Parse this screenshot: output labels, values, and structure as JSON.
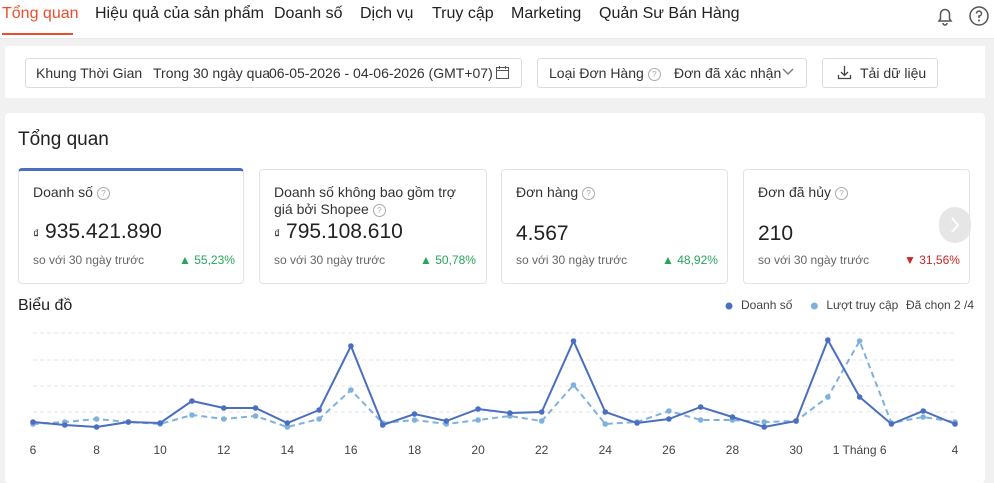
{
  "nav": {
    "tabs": [
      "Tổng quan",
      "Hiệu quả của sản phẩm",
      "Doanh số",
      "Dịch vụ",
      "Truy cập",
      "Marketing",
      "Quản Sư Bán Hàng"
    ]
  },
  "filters": {
    "time_label": "Khung Thời Gian",
    "time_value": "Trong 30 ngày qua",
    "date_range": "06-05-2026 - 04-06-2026 (GMT+07)",
    "order_type_label": "Loại Đơn Hàng",
    "order_type_value": "Đơn đã xác nhận",
    "download": "Tải dữ liệu"
  },
  "overview": {
    "title": "Tổng quan",
    "cards": [
      {
        "label": "Doanh số",
        "currency": "₫",
        "value": "935.421.890",
        "compare": "so với 30 ngày trước",
        "change": "55,23%"
      },
      {
        "label": "Doanh số không bao gồm trợ giá bởi Shopee",
        "currency": "₫",
        "value": "795.108.610",
        "compare": "so với 30 ngày trước",
        "change": "50,78%"
      },
      {
        "label": "Đơn hàng",
        "value": "4.567",
        "compare": "so với 30 ngày trước",
        "change": "48,92%"
      },
      {
        "label": "Đơn đã hủy",
        "value": "210",
        "compare": "so với 30 ngày trước",
        "change": "31,56%"
      }
    ]
  },
  "chart_data": {
    "type": "line",
    "title": "Biểu đồ",
    "selected": "Đã chọn 2 /4",
    "categories": [
      "6",
      null,
      "8",
      null,
      "10",
      null,
      "12",
      null,
      "14",
      null,
      "16",
      null,
      "18",
      null,
      "20",
      null,
      "22",
      null,
      "24",
      null,
      "26",
      null,
      "28",
      null,
      "30",
      null,
      "1 Tháng 6",
      null,
      null,
      "4"
    ],
    "ylim": [
      0,
      110
    ],
    "series": [
      {
        "name": "Doanh số",
        "color": "#4a6fc1",
        "dash": false,
        "values": [
          18,
          15,
          13,
          18,
          17,
          39,
          32,
          32,
          17,
          30,
          94,
          15,
          26,
          19,
          31,
          27,
          28,
          99,
          28,
          17,
          21,
          33,
          23,
          13,
          19,
          100,
          43,
          16,
          29,
          16
        ]
      },
      {
        "name": "Lượt truy cập",
        "color": "#7fb1dd",
        "dash": true,
        "values": [
          16,
          18,
          21,
          18,
          16,
          25,
          21,
          24,
          13,
          21,
          50,
          17,
          20,
          16,
          20,
          24,
          19,
          55,
          16,
          18,
          29,
          20,
          20,
          18,
          19,
          43,
          99,
          17,
          23,
          18
        ]
      }
    ]
  }
}
